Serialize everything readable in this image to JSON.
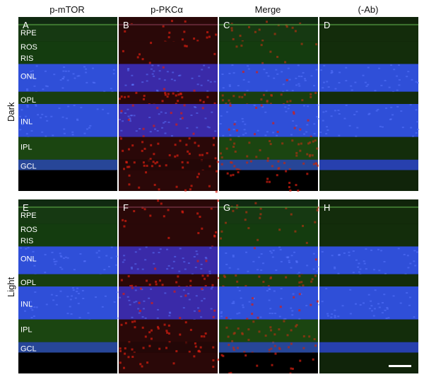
{
  "columns": [
    "p-mTOR",
    "p-PKCα",
    "Merge",
    "(-Ab)"
  ],
  "rows": [
    "Dark",
    "Light"
  ],
  "panels": {
    "top": [
      "A",
      "B",
      "C",
      "D"
    ],
    "bottom": [
      "E",
      "F",
      "G",
      "H"
    ]
  },
  "layers": [
    "RPE",
    "ROS",
    "RIS",
    "ONL",
    "OPL",
    "INL",
    "IPL",
    "GCL"
  ],
  "colors": {
    "nuclei": "#2f4fd8",
    "green": "#2c6a18",
    "red": "#d81e10"
  }
}
